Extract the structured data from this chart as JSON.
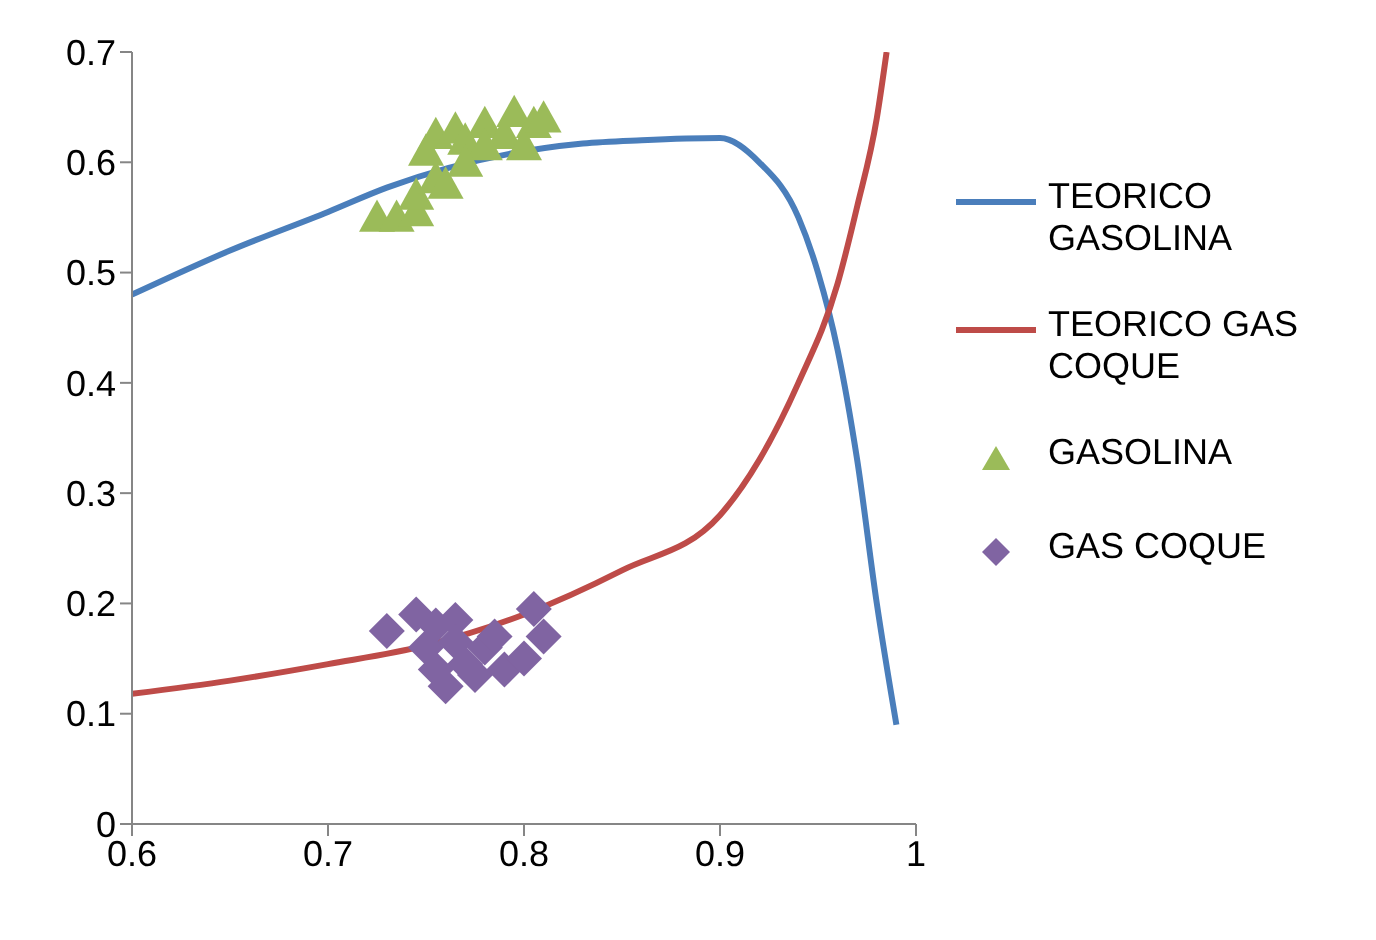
{
  "chart_data": {
    "type": "line",
    "xlim": [
      0.6,
      1
    ],
    "xticks": [
      0.6,
      0.7,
      0.8,
      0.9,
      1
    ],
    "ylim": [
      0,
      0.7
    ],
    "yticks": [
      0,
      0.1,
      0.2,
      0.3,
      0.4,
      0.5,
      0.6,
      0.7
    ],
    "grid": false,
    "legend": "right",
    "series": [
      {
        "name": "TEORICO GASOLINA",
        "marker": "none",
        "color": "#4a7ebb",
        "x": [
          0.6,
          0.65,
          0.7,
          0.73,
          0.83,
          0.86,
          0.9,
          0.92,
          0.94,
          0.95,
          0.96,
          0.97,
          0.98,
          0.99
        ],
        "values": [
          0.48,
          0.52,
          0.555,
          0.577,
          0.617,
          0.62,
          0.622,
          0.6,
          0.55,
          0.5,
          0.43,
          0.33,
          0.2,
          0.09
        ]
      },
      {
        "name": "TEORICO GAS COQUE",
        "marker": "none",
        "color": "#be4b48",
        "x": [
          0.6,
          0.65,
          0.7,
          0.75,
          0.8,
          0.85,
          0.9,
          0.92,
          0.94,
          0.96,
          0.97,
          0.98,
          0.985
        ],
        "values": [
          0.118,
          0.13,
          0.145,
          0.162,
          0.19,
          0.23,
          0.28,
          0.33,
          0.4,
          0.49,
          0.56,
          0.64,
          0.7
        ]
      },
      {
        "name": "GASOLINA",
        "type": "scatter",
        "marker": "triangle",
        "color": "#9bbb59",
        "x": [
          0.725,
          0.735,
          0.745,
          0.745,
          0.755,
          0.75,
          0.755,
          0.765,
          0.77,
          0.76,
          0.78,
          0.79,
          0.795,
          0.8,
          0.805,
          0.81,
          0.78,
          0.77
        ],
        "values": [
          0.55,
          0.55,
          0.555,
          0.57,
          0.585,
          0.61,
          0.625,
          0.63,
          0.62,
          0.58,
          0.635,
          0.625,
          0.645,
          0.615,
          0.635,
          0.64,
          0.615,
          0.6
        ]
      },
      {
        "name": "GAS COQUE",
        "type": "scatter",
        "marker": "diamond",
        "color": "#8064a2",
        "x": [
          0.73,
          0.745,
          0.755,
          0.765,
          0.75,
          0.755,
          0.76,
          0.77,
          0.78,
          0.785,
          0.79,
          0.8,
          0.805,
          0.81,
          0.775,
          0.765
        ],
        "values": [
          0.175,
          0.19,
          0.18,
          0.185,
          0.16,
          0.14,
          0.125,
          0.145,
          0.16,
          0.17,
          0.14,
          0.15,
          0.195,
          0.17,
          0.135,
          0.165
        ]
      }
    ]
  }
}
